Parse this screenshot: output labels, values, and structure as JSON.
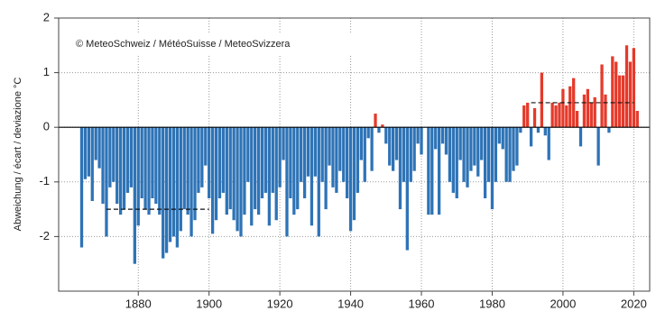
{
  "chart_data": {
    "type": "bar",
    "annotation": "© MeteoSchweiz / MétéoSuisse / MeteoSvizzera",
    "y_label": "Abweichung / écart / deviazione °C",
    "x": [
      1864,
      1865,
      1866,
      1867,
      1868,
      1869,
      1870,
      1871,
      1872,
      1873,
      1874,
      1875,
      1876,
      1877,
      1878,
      1879,
      1880,
      1881,
      1882,
      1883,
      1884,
      1885,
      1886,
      1887,
      1888,
      1889,
      1890,
      1891,
      1892,
      1893,
      1894,
      1895,
      1896,
      1897,
      1898,
      1899,
      1900,
      1901,
      1902,
      1903,
      1904,
      1905,
      1906,
      1907,
      1908,
      1909,
      1910,
      1911,
      1912,
      1913,
      1914,
      1915,
      1916,
      1917,
      1918,
      1919,
      1920,
      1921,
      1922,
      1923,
      1924,
      1925,
      1926,
      1927,
      1928,
      1929,
      1930,
      1931,
      1932,
      1933,
      1934,
      1935,
      1936,
      1937,
      1938,
      1939,
      1940,
      1941,
      1942,
      1943,
      1944,
      1945,
      1946,
      1947,
      1948,
      1949,
      1950,
      1951,
      1952,
      1953,
      1954,
      1955,
      1956,
      1957,
      1958,
      1959,
      1960,
      1961,
      1962,
      1963,
      1964,
      1965,
      1966,
      1967,
      1968,
      1969,
      1970,
      1971,
      1972,
      1973,
      1974,
      1975,
      1976,
      1977,
      1978,
      1979,
      1980,
      1981,
      1982,
      1983,
      1984,
      1985,
      1986,
      1987,
      1988,
      1989,
      1990,
      1991,
      1992,
      1993,
      1994,
      1995,
      1996,
      1997,
      1998,
      1999,
      2000,
      2001,
      2002,
      2003,
      2004,
      2005,
      2006,
      2007,
      2008,
      2009,
      2010,
      2011,
      2012,
      2013,
      2014,
      2015,
      2016,
      2017,
      2018,
      2019,
      2020,
      2021
    ],
    "values": [
      -2.2,
      -0.95,
      -0.9,
      -1.35,
      -0.6,
      -0.75,
      -1.4,
      -2.0,
      -1.1,
      -1.0,
      -1.4,
      -1.6,
      -1.5,
      -1.2,
      -1.1,
      -2.5,
      -1.8,
      -1.3,
      -1.5,
      -1.6,
      -1.3,
      -1.4,
      -1.6,
      -2.4,
      -2.3,
      -2.1,
      -2.0,
      -2.2,
      -1.9,
      -1.5,
      -1.6,
      -2.0,
      -1.7,
      -1.2,
      -1.1,
      -0.7,
      -1.3,
      -1.95,
      -1.7,
      -1.3,
      -1.2,
      -1.6,
      -1.5,
      -1.7,
      -1.9,
      -2.0,
      -1.6,
      -1.0,
      -1.8,
      -1.5,
      -1.6,
      -1.3,
      -1.2,
      -1.8,
      -1.2,
      -1.7,
      -1.1,
      -0.6,
      -2.0,
      -1.3,
      -1.6,
      -1.5,
      -1.0,
      -1.3,
      -0.9,
      -1.8,
      -0.9,
      -2.0,
      -1.0,
      -1.5,
      -0.7,
      -1.1,
      -1.2,
      -0.8,
      -1.0,
      -1.3,
      -1.9,
      -1.7,
      -1.2,
      -0.6,
      -1.0,
      -0.2,
      -0.8,
      0.25,
      -0.1,
      0.05,
      -0.3,
      -0.7,
      -0.8,
      -0.6,
      -1.5,
      -1.0,
      -2.25,
      -1.0,
      -0.8,
      -0.3,
      -0.5,
      0.0,
      -1.6,
      -1.6,
      -0.4,
      -1.6,
      -0.3,
      -0.5,
      -1.0,
      -1.2,
      -1.3,
      -0.6,
      -1.0,
      -1.1,
      -0.8,
      -0.7,
      -0.9,
      -0.6,
      -1.3,
      -1.0,
      -1.5,
      -1.0,
      -0.3,
      -0.4,
      -1.0,
      -1.0,
      -0.8,
      -0.7,
      -0.1,
      0.4,
      0.45,
      -0.35,
      0.35,
      -0.1,
      1.0,
      -0.15,
      -0.6,
      0.45,
      0.4,
      0.45,
      0.7,
      0.4,
      0.75,
      0.9,
      0.3,
      -0.35,
      0.6,
      0.7,
      0.45,
      0.55,
      -0.7,
      1.15,
      0.6,
      -0.1,
      1.3,
      1.2,
      0.95,
      0.95,
      1.5,
      1.2,
      1.45,
      0.3
    ],
    "color_positive": "#e53a2b",
    "color_negative": "#2e73b6",
    "reference_lines": [
      {
        "x": [
          1871,
          1900
        ],
        "value": -1.5
      },
      {
        "x": [
          1991,
          2020
        ],
        "value": 0.45
      }
    ],
    "xlim": [
      1857.5,
      2024.5
    ],
    "xticks": [
      1880,
      1900,
      1920,
      1940,
      1960,
      1980,
      2000,
      2020
    ],
    "ylim": [
      -3,
      2
    ],
    "yticks": [
      -2,
      -1,
      0,
      1,
      2
    ],
    "grid": true
  }
}
